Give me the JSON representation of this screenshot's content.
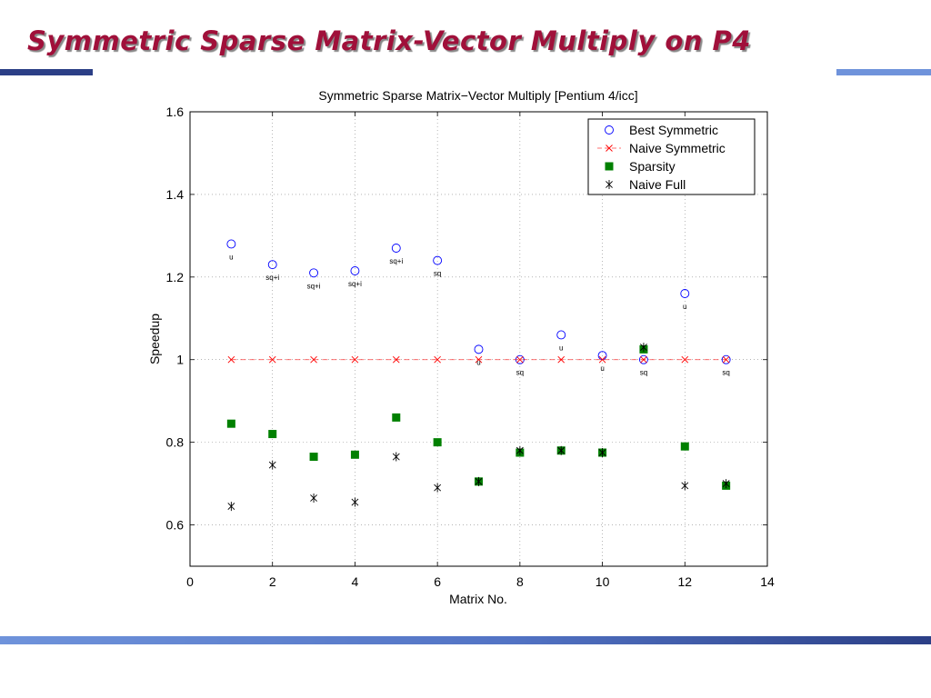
{
  "slide": {
    "title": "Symmetric Sparse Matrix-Vector Multiply on P4"
  },
  "colors": {
    "title": "#a0103a",
    "rule_dark": "#2b3f86",
    "rule_light": "#6f93db",
    "best_symmetric": "#0000ff",
    "naive_symmetric": "#ff0000",
    "sparsity": "#008000",
    "naive_full": "#000000"
  },
  "chart_data": {
    "type": "scatter",
    "title": "Symmetric Sparse Matrix−Vector Multiply [Pentium 4/icc]",
    "xlabel": "Matrix No.",
    "ylabel": "Speedup",
    "xlim": [
      0,
      14
    ],
    "ylim": [
      0.5,
      1.6
    ],
    "xticks": [
      0,
      2,
      4,
      6,
      8,
      10,
      12,
      14
    ],
    "yticks": [
      0.6,
      0.8,
      1,
      1.2,
      1.4,
      1.6
    ],
    "grid": true,
    "legend_position": "top-right",
    "series": [
      {
        "name": "Best Symmetric",
        "marker": "circle",
        "color": "#0000ff",
        "x": [
          1,
          2,
          3,
          4,
          5,
          6,
          7,
          8,
          9,
          10,
          11,
          12,
          13
        ],
        "y": [
          1.28,
          1.23,
          1.21,
          1.215,
          1.27,
          1.24,
          1.025,
          1.0,
          1.06,
          1.01,
          1.0,
          1.16,
          1.0
        ]
      },
      {
        "name": "Naive Symmetric",
        "marker": "x",
        "line": "dashed",
        "color": "#ff0000",
        "x": [
          1,
          2,
          3,
          4,
          5,
          6,
          7,
          8,
          9,
          10,
          11,
          12,
          13
        ],
        "y": [
          1,
          1,
          1,
          1,
          1,
          1,
          1,
          1,
          1,
          1,
          1,
          1,
          1
        ]
      },
      {
        "name": "Sparsity",
        "marker": "square",
        "color": "#008000",
        "x": [
          1,
          2,
          3,
          4,
          5,
          6,
          7,
          8,
          9,
          10,
          11,
          12,
          13
        ],
        "y": [
          0.845,
          0.82,
          0.765,
          0.77,
          0.86,
          0.8,
          0.705,
          0.775,
          0.78,
          0.775,
          1.025,
          0.79,
          0.695
        ]
      },
      {
        "name": "Naive Full",
        "marker": "asterisk",
        "color": "#000000",
        "x": [
          1,
          2,
          3,
          4,
          5,
          6,
          7,
          8,
          9,
          10,
          11,
          12,
          13
        ],
        "y": [
          0.645,
          0.745,
          0.665,
          0.655,
          0.765,
          0.69,
          0.705,
          0.78,
          0.78,
          0.775,
          1.03,
          0.695,
          0.7
        ]
      }
    ],
    "annotations": [
      {
        "x": 1,
        "y": 1.28,
        "text": "u"
      },
      {
        "x": 2,
        "y": 1.23,
        "text": "sq+i"
      },
      {
        "x": 3,
        "y": 1.21,
        "text": "sq+i"
      },
      {
        "x": 4,
        "y": 1.215,
        "text": "sq+i"
      },
      {
        "x": 5,
        "y": 1.27,
        "text": "sq+i"
      },
      {
        "x": 6,
        "y": 1.24,
        "text": "sq"
      },
      {
        "x": 7,
        "y": 1.025,
        "text": "u"
      },
      {
        "x": 8,
        "y": 1.0,
        "text": "sq"
      },
      {
        "x": 9,
        "y": 1.06,
        "text": "u"
      },
      {
        "x": 10,
        "y": 1.01,
        "text": "u"
      },
      {
        "x": 11,
        "y": 1.0,
        "text": "sq"
      },
      {
        "x": 12,
        "y": 1.16,
        "text": "u"
      },
      {
        "x": 13,
        "y": 1.0,
        "text": "sq"
      }
    ]
  }
}
